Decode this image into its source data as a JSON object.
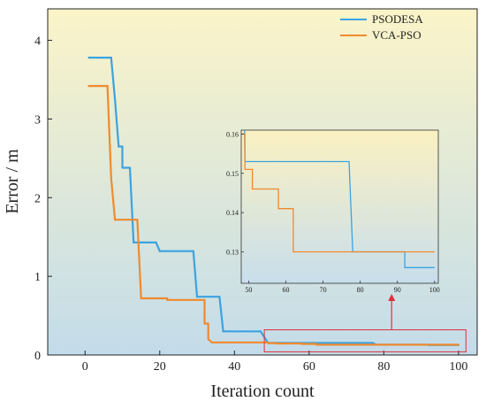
{
  "chart_data": {
    "type": "line",
    "xlabel": "Iteration count",
    "ylabel": "Error / m",
    "xlim": [
      -10,
      105
    ],
    "ylim": [
      0,
      4.4
    ],
    "xticks": [
      0,
      20,
      40,
      60,
      80,
      100
    ],
    "yticks": [
      0,
      1,
      2,
      3,
      4
    ],
    "grid": false,
    "background": "gradient-yellow-to-blue",
    "legend_position": "top-right",
    "series": [
      {
        "name": "PSODESA",
        "color": "#3BA3E0",
        "x": [
          1,
          7,
          7,
          8,
          9,
          10,
          10,
          12,
          12,
          13,
          13,
          14,
          14,
          19,
          19,
          20,
          20,
          29,
          29,
          30,
          30,
          36,
          36,
          37,
          37,
          47,
          47,
          49,
          49,
          77,
          77,
          78,
          78,
          92,
          92,
          100
        ],
        "y": [
          3.78,
          3.78,
          3.78,
          3.25,
          2.65,
          2.65,
          2.38,
          2.38,
          2.38,
          1.43,
          1.43,
          1.43,
          1.43,
          1.43,
          1.43,
          1.32,
          1.32,
          1.32,
          1.32,
          0.74,
          0.74,
          0.74,
          0.74,
          0.3,
          0.3,
          0.3,
          0.3,
          0.153,
          0.153,
          0.153,
          0.153,
          0.13,
          0.13,
          0.13,
          0.126,
          0.126
        ]
      },
      {
        "name": "VCA-PSO",
        "color": "#F08A2E",
        "x": [
          1,
          6,
          6,
          7,
          8,
          8,
          14,
          14,
          15,
          15,
          22,
          22,
          32,
          32,
          33,
          33,
          34,
          49,
          49,
          51,
          51,
          54,
          54,
          58,
          58,
          60,
          60,
          62,
          62,
          100
        ],
        "y": [
          3.42,
          3.42,
          3.42,
          2.25,
          1.72,
          1.72,
          1.72,
          1.72,
          0.72,
          0.72,
          0.72,
          0.7,
          0.7,
          0.4,
          0.4,
          0.2,
          0.16,
          0.16,
          0.151,
          0.151,
          0.146,
          0.146,
          0.146,
          0.146,
          0.141,
          0.141,
          0.141,
          0.141,
          0.13,
          0.13
        ]
      }
    ],
    "inset": {
      "xlim": [
        48,
        101
      ],
      "ylim": [
        0.122,
        0.161
      ],
      "xticks": [
        50,
        60,
        70,
        80,
        90,
        100
      ],
      "yticks": [
        0.13,
        0.14,
        0.15,
        0.16
      ]
    },
    "highlight_box": {
      "xrange": [
        48,
        102
      ],
      "yrange": [
        0.04,
        0.32
      ]
    }
  }
}
